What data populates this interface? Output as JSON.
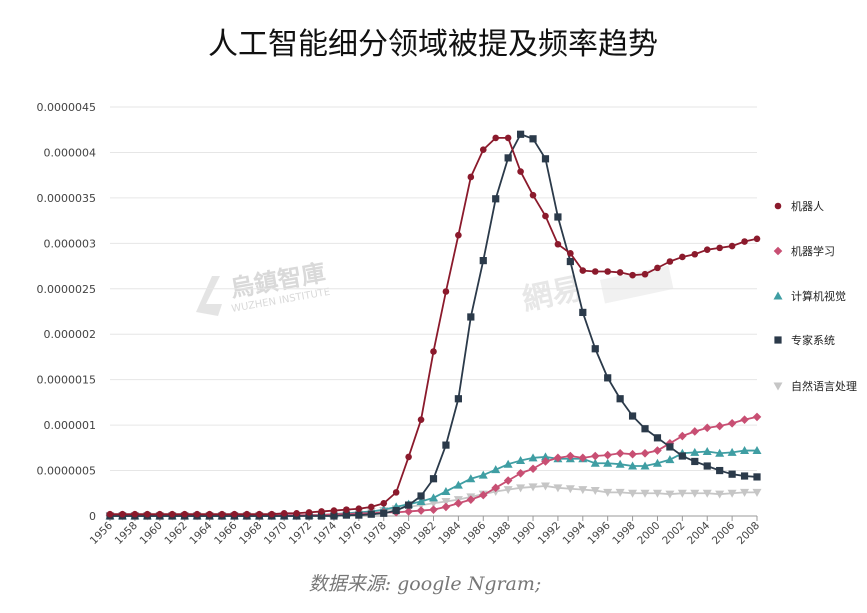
{
  "chart_data": {
    "type": "line",
    "title": "人工智能细分领域被提及频率趋势",
    "source": "数据来源: google Ngram;",
    "xlabel": "",
    "ylabel": "",
    "xlim": [
      1956,
      2008
    ],
    "ylim": [
      0,
      4.5e-06
    ],
    "y_ticks": [
      "0",
      "0.0000005",
      "0.000001",
      "0.0000015",
      "0.000002",
      "0.0000025",
      "0.000003",
      "0.0000035",
      "0.000004",
      "0.0000045"
    ],
    "x_ticks": [
      "1956",
      "1958",
      "1960",
      "1962",
      "1964",
      "1966",
      "1968",
      "1970",
      "1972",
      "1974",
      "1976",
      "1978",
      "1980",
      "1982",
      "1984",
      "1986",
      "1988",
      "1990",
      "1992",
      "1994",
      "1996",
      "1998",
      "2000",
      "2002",
      "2004",
      "2006",
      "2008"
    ],
    "grid": true,
    "legend_position": "right",
    "x": [
      1956,
      1957,
      1958,
      1959,
      1960,
      1961,
      1962,
      1963,
      1964,
      1965,
      1966,
      1967,
      1968,
      1969,
      1970,
      1971,
      1972,
      1973,
      1974,
      1975,
      1976,
      1977,
      1978,
      1979,
      1980,
      1981,
      1982,
      1983,
      1984,
      1985,
      1986,
      1987,
      1988,
      1989,
      1990,
      1991,
      1992,
      1993,
      1994,
      1995,
      1996,
      1997,
      1998,
      1999,
      2000,
      2001,
      2002,
      2003,
      2004,
      2005,
      2006,
      2007,
      2008
    ],
    "series": [
      {
        "name": "机器人",
        "color": "#8b1a2c",
        "marker": "circle",
        "values": [
          2e-08,
          2e-08,
          2e-08,
          2e-08,
          2e-08,
          2e-08,
          2e-08,
          2e-08,
          2e-08,
          2e-08,
          2e-08,
          2e-08,
          2e-08,
          2e-08,
          3e-08,
          3e-08,
          4e-08,
          5e-08,
          6e-08,
          7e-08,
          8e-08,
          1e-07,
          1.4e-07,
          2.6e-07,
          6.5e-07,
          1.06e-06,
          1.81e-06,
          2.47e-06,
          3.09e-06,
          3.73e-06,
          4.03e-06,
          4.16e-06,
          4.16e-06,
          3.79e-06,
          3.53e-06,
          3.3e-06,
          2.99e-06,
          2.89e-06,
          2.7e-06,
          2.69e-06,
          2.69e-06,
          2.68e-06,
          2.65e-06,
          2.66e-06,
          2.73e-06,
          2.8e-06,
          2.85e-06,
          2.88e-06,
          2.93e-06,
          2.95e-06,
          2.97e-06,
          3.02e-06,
          3.05e-06
        ]
      },
      {
        "name": "机器学习",
        "color": "#c84f73",
        "marker": "diamond",
        "values": [
          1e-08,
          1e-08,
          1e-08,
          1e-08,
          1e-08,
          1e-08,
          1e-08,
          1e-08,
          1e-08,
          1e-08,
          1e-08,
          1e-08,
          1e-08,
          1e-08,
          1e-08,
          1e-08,
          1e-08,
          1e-08,
          2e-08,
          2e-08,
          3e-08,
          3e-08,
          4e-08,
          4e-08,
          5e-08,
          6e-08,
          7e-08,
          1e-07,
          1.4e-07,
          1.8e-07,
          2.3e-07,
          3.1e-07,
          3.9e-07,
          4.7e-07,
          5.2e-07,
          6e-07,
          6.4e-07,
          6.6e-07,
          6.4e-07,
          6.6e-07,
          6.7e-07,
          6.9e-07,
          6.8e-07,
          6.9e-07,
          7.2e-07,
          8e-07,
          8.8e-07,
          9.3e-07,
          9.7e-07,
          9.9e-07,
          1.02e-06,
          1.06e-06,
          1.09e-06
        ]
      },
      {
        "name": "计算机视觉",
        "color": "#3f9ea3",
        "marker": "triangle",
        "values": [
          0.0,
          0.0,
          0.0,
          0.0,
          0.0,
          0.0,
          0.0,
          0.0,
          0.0,
          0.0,
          0.0,
          0.0,
          0.0,
          0.0,
          0.0,
          0.0,
          1e-08,
          1e-08,
          2e-08,
          3e-08,
          4e-08,
          5e-08,
          7e-08,
          1e-07,
          1.3e-07,
          1.6e-07,
          2e-07,
          2.7e-07,
          3.4e-07,
          4.1e-07,
          4.5e-07,
          5.1e-07,
          5.7e-07,
          6.1e-07,
          6.4e-07,
          6.5e-07,
          6.3e-07,
          6.3e-07,
          6.3e-07,
          5.8e-07,
          5.8e-07,
          5.7e-07,
          5.5e-07,
          5.5e-07,
          5.8e-07,
          6.2e-07,
          6.9e-07,
          7e-07,
          7.1e-07,
          6.9e-07,
          7e-07,
          7.2e-07,
          7.2e-07
        ]
      },
      {
        "name": "专家系统",
        "color": "#2b3a4a",
        "marker": "square",
        "values": [
          0.0,
          0.0,
          0.0,
          0.0,
          0.0,
          0.0,
          0.0,
          0.0,
          0.0,
          0.0,
          0.0,
          0.0,
          0.0,
          0.0,
          0.0,
          0.0,
          0.0,
          0.0,
          0.0,
          1e-08,
          1e-08,
          2e-08,
          3e-08,
          6e-08,
          1.2e-07,
          2.2e-07,
          4.1e-07,
          7.8e-07,
          1.29e-06,
          2.19e-06,
          2.81e-06,
          3.49e-06,
          3.94e-06,
          4.2e-06,
          4.15e-06,
          3.93e-06,
          3.29e-06,
          2.8e-06,
          2.24e-06,
          1.84e-06,
          1.52e-06,
          1.29e-06,
          1.1e-06,
          9.6e-07,
          8.6e-07,
          7.6e-07,
          6.6e-07,
          6e-07,
          5.5e-07,
          5e-07,
          4.6e-07,
          4.4e-07,
          4.3e-07
        ]
      },
      {
        "name": "自然语言处理",
        "color": "#c6c6c6",
        "marker": "triangle-down",
        "values": [
          0.0,
          0.0,
          0.0,
          0.0,
          0.0,
          0.0,
          0.0,
          0.0,
          0.0,
          0.0,
          0.0,
          0.0,
          0.0,
          0.0,
          0.0,
          0.0,
          1e-08,
          1e-08,
          2e-08,
          3e-08,
          4e-08,
          5e-08,
          6e-08,
          8e-08,
          1e-07,
          1.2e-07,
          1.4e-07,
          1.6e-07,
          1.8e-07,
          2.1e-07,
          2.4e-07,
          2.7e-07,
          2.9e-07,
          3.1e-07,
          3.2e-07,
          3.3e-07,
          3.1e-07,
          3e-07,
          2.9e-07,
          2.8e-07,
          2.6e-07,
          2.6e-07,
          2.5e-07,
          2.5e-07,
          2.5e-07,
          2.4e-07,
          2.5e-07,
          2.5e-07,
          2.5e-07,
          2.4e-07,
          2.5e-07,
          2.6e-07,
          2.6e-07
        ]
      }
    ]
  },
  "watermarks": {
    "left_cn": "烏鎮智庫",
    "left_en": "WUZHEN INSTITUTE",
    "center_cn": "網易"
  }
}
